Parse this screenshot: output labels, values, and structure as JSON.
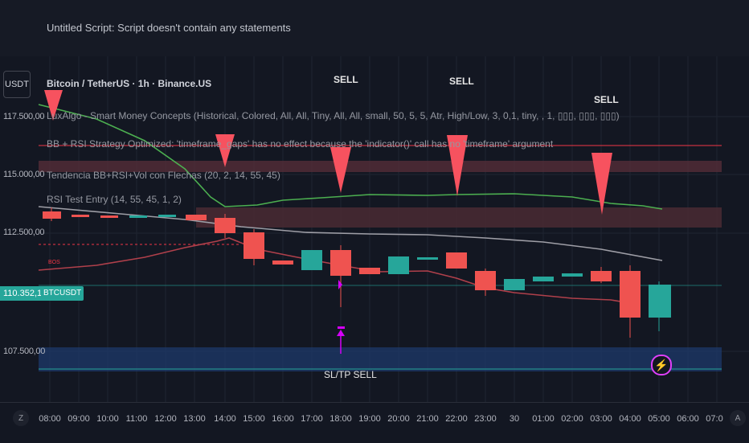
{
  "header": {
    "script_message": "Untitled Script: Script doesn't contain any statements"
  },
  "currency_button": "USDT",
  "legend": {
    "title": "Bitcoin / TetherUS · 1h · Binance.US",
    "indicators": [
      "LuxAlgo - Smart Money Concepts (Historical, Colored, All, All, Tiny, All, All, small, 50, 5, 5, Atr, High/Low, 3, 0,1, tiny, , 1, ▯▯▯, ▯▯▯, ▯▯▯)",
      "BB + RSI Strategy Optimized: 'timeframe_gaps' has no effect because the 'indicator()' call has no 'timeframe' argument",
      "Tendencia BB+RSI+Vol con Flechas (20, 2, 14, 55, 45)",
      "RSI Test Entry (14, 55, 45, 1, 2)"
    ]
  },
  "y_axis": {
    "labels": [
      "117.500,00",
      "115.000,00",
      "112.500,00",
      "110.352,15",
      "107.500,00"
    ]
  },
  "price_tag": "110.352,15",
  "symbol_tag": "BTCUSDT",
  "bos_label": "BOS",
  "signals": {
    "sell": "SELL",
    "sltp": "SL/TP SELL"
  },
  "x_axis": {
    "labels": [
      "08:00",
      "09:00",
      "10:00",
      "11:00",
      "12:00",
      "13:00",
      "14:00",
      "15:00",
      "16:00",
      "17:00",
      "18:00",
      "19:00",
      "20:00",
      "21:00",
      "22:00",
      "23:00",
      "30",
      "01:00",
      "02:00",
      "03:00",
      "04:00",
      "05:00",
      "06:00",
      "07:0"
    ],
    "left_button": "Z",
    "right_button": "A"
  },
  "colors": {
    "up": "#26a69a",
    "down": "#ef5350",
    "background": "#131722"
  },
  "flash_icon": "lightning-icon"
}
